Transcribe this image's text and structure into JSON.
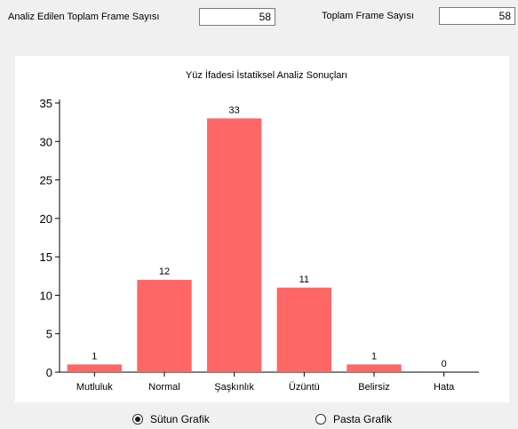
{
  "header": {
    "analyzed_label": "Analiz Edilen Toplam Frame Sayısı",
    "analyzed_value": "58",
    "total_label": "Toplam Frame Sayısı",
    "total_value": "58"
  },
  "chart_data": {
    "type": "bar",
    "title": "Yüz İfadesi İstatiksel Analiz Sonuçları",
    "categories": [
      "Mutluluk",
      "Normal",
      "Şaşkınlık",
      "Üzüntü",
      "Belirsiz",
      "Hata"
    ],
    "values": [
      1,
      12,
      33,
      11,
      1,
      0
    ],
    "xlabel": "",
    "ylabel": "",
    "ylim": [
      0,
      35
    ],
    "yticks": [
      0,
      5,
      10,
      15,
      20,
      25,
      30,
      35
    ],
    "bar_color": "#ff6666",
    "data_labels": true,
    "grid": false,
    "legend": "none"
  },
  "options": {
    "bar_chart_label": "Sütun Grafik",
    "pie_chart_label": "Pasta Grafik",
    "selected": "bar"
  }
}
